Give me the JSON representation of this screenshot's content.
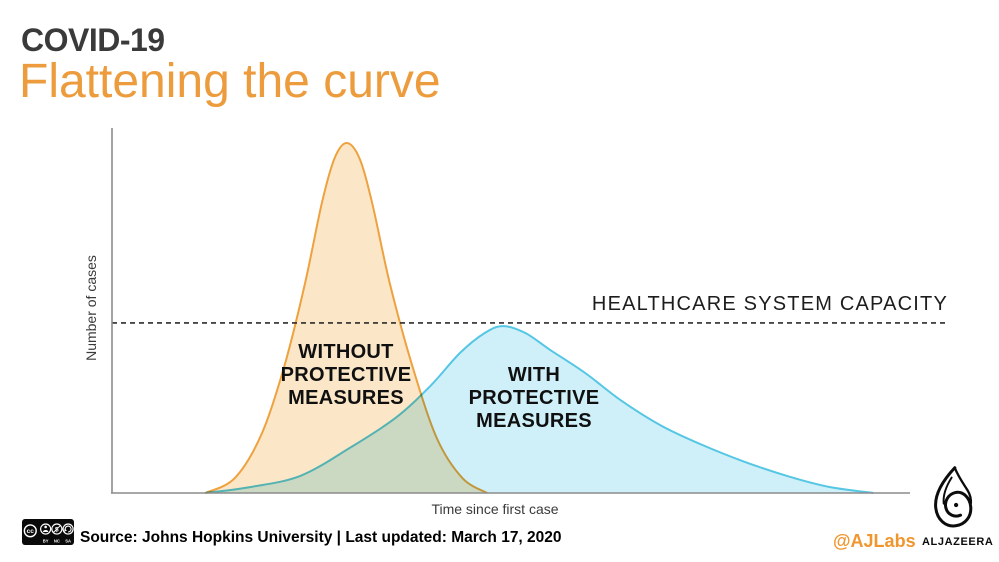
{
  "header": {
    "kicker": "COVID-19",
    "title": "Flattening the curve"
  },
  "colors": {
    "title_orange": "#EC9C3D",
    "kicker_gray": "#3a3a3a",
    "axis_gray": "#8c8c8c",
    "capacity_dash": "#2b2b2b",
    "credit_orange": "#F0962F"
  },
  "chart_data": {
    "type": "area",
    "title": "Flattening the curve",
    "xlabel": "Time since first case",
    "ylabel": "Number of cases",
    "grid": false,
    "legend_position": "labels-inside-curves",
    "axis_note": "axes are unlabeled (no tick values); values below are relative 0-100",
    "xlim": [
      0,
      100
    ],
    "ylim": [
      0,
      100
    ],
    "capacity_line": {
      "label": "HEALTHCARE SYSTEM CAPACITY",
      "level": 48.6,
      "style": "dashed"
    },
    "series": [
      {
        "name": "WITHOUT PROTECTIVE MEASURES",
        "stroke": "#EEA13F",
        "fill": "#FBE7C8",
        "x": [
          11.7,
          15.4,
          18.8,
          21.7,
          24.2,
          26.3,
          27.9,
          29.4,
          31.0,
          32.6,
          34.8,
          37.6,
          40.7,
          43.9,
          47.0
        ],
        "y": [
          0,
          4.3,
          17.1,
          37.1,
          60,
          82.9,
          95.7,
          100,
          95.7,
          82.9,
          60,
          36.6,
          15.7,
          4.3,
          0
        ]
      },
      {
        "name": "WITH PROTECTIVE MEASURES",
        "stroke": "#55C6E3",
        "fill": "#CFF0F9",
        "x": [
          11.7,
          17.3,
          23.6,
          29.8,
          35.5,
          39.9,
          43.6,
          46.7,
          49.0,
          51.8,
          54.9,
          59.3,
          63.7,
          68.7,
          73.7,
          79.3,
          85.0,
          90.0,
          95.4
        ],
        "y": [
          0,
          1.7,
          4.9,
          12.9,
          21.4,
          30.6,
          40,
          45.7,
          47.7,
          45.7,
          40.9,
          34.3,
          26.6,
          19.4,
          14,
          8.9,
          4.6,
          1.7,
          0
        ]
      }
    ]
  },
  "footer": {
    "license_name": "CC BY-NC-SA",
    "license_cc": "CC",
    "license_parts": [
      "BY",
      "NC",
      "SA"
    ],
    "source": "Source: Johns Hopkins University  |  Last updated: March 17, 2020",
    "credit": "@AJLabs",
    "brand": "ALJAZEERA"
  }
}
